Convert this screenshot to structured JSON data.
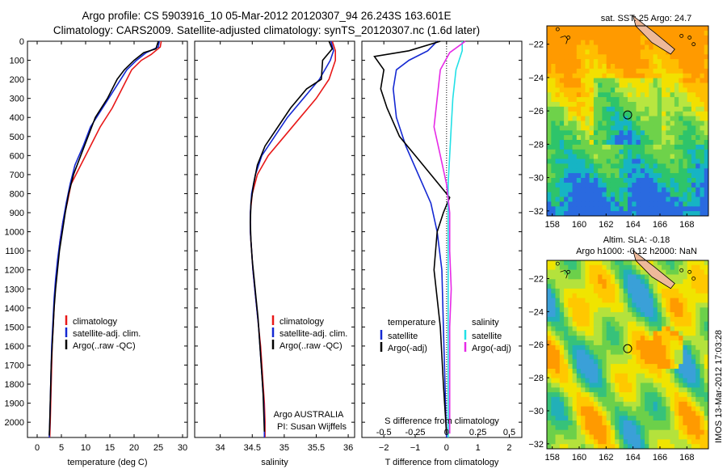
{
  "title_line1": "Argo profile: CS 5903916_10 05-Mar-2012 20120307_94 26.243S 163.601E",
  "title_line2": "Climatology: CARS2009. Satellite-adjusted climatology: synTS_20120307.nc (1.6d later)",
  "footer_text": "IMOS 13-Mar-2012 17:03:28",
  "colors": {
    "climatology": "#e81818",
    "satellite": "#1428d2",
    "argo": "#000000",
    "satellite_salinity": "#22e0e6",
    "argo_salinity": "#e62ae6"
  },
  "chart_data": [
    {
      "type": "line",
      "xlabel": "temperature (deg C)",
      "ylim": [
        2080,
        0
      ],
      "xlim": [
        -2,
        31
      ],
      "xticks": [
        0,
        5,
        10,
        15,
        20,
        25,
        30
      ],
      "yticks": [
        0,
        100,
        200,
        300,
        400,
        500,
        600,
        700,
        800,
        900,
        1000,
        1100,
        1200,
        1300,
        1400,
        1500,
        1600,
        1700,
        1800,
        1900,
        2000
      ],
      "legend_location": "lower-left",
      "series": [
        {
          "name": "climatology",
          "color": "red",
          "points": [
            [
              25.6,
              0
            ],
            [
              25.4,
              30
            ],
            [
              23.5,
              70
            ],
            [
              21.5,
              100
            ],
            [
              19.5,
              150
            ],
            [
              17.5,
              250
            ],
            [
              15.5,
              350
            ],
            [
              13,
              450
            ],
            [
              11,
              550
            ],
            [
              9,
              650
            ],
            [
              7,
              750
            ],
            [
              6.2,
              850
            ],
            [
              5.3,
              950
            ],
            [
              4.7,
              1050
            ],
            [
              4.3,
              1150
            ],
            [
              3.9,
              1250
            ],
            [
              3.6,
              1350
            ],
            [
              3.4,
              1450
            ],
            [
              3.1,
              1600
            ],
            [
              2.9,
              1800
            ],
            [
              2.7,
              2000
            ],
            [
              2.6,
              2080
            ]
          ]
        },
        {
          "name": "satellite-adj. clim.",
          "color": "blue",
          "points": [
            [
              25.2,
              0
            ],
            [
              25,
              30
            ],
            [
              22.5,
              60
            ],
            [
              20.5,
              100
            ],
            [
              18.5,
              150
            ],
            [
              16,
              250
            ],
            [
              13.5,
              350
            ],
            [
              11,
              450
            ],
            [
              9.5,
              550
            ],
            [
              7.8,
              650
            ],
            [
              6.8,
              750
            ],
            [
              6,
              850
            ],
            [
              5.3,
              950
            ],
            [
              4.7,
              1050
            ],
            [
              4.2,
              1150
            ],
            [
              3.8,
              1250
            ],
            [
              3.5,
              1350
            ],
            [
              3.3,
              1450
            ],
            [
              3,
              1600
            ],
            [
              2.8,
              1800
            ],
            [
              2.6,
              2000
            ],
            [
              2.5,
              2080
            ]
          ]
        },
        {
          "name": "Argo(..raw -QC)",
          "color": "black",
          "points": [
            [
              25,
              0
            ],
            [
              24.5,
              40
            ],
            [
              22,
              60
            ],
            [
              20,
              100
            ],
            [
              18,
              150
            ],
            [
              16.5,
              200
            ],
            [
              14.5,
              300
            ],
            [
              12,
              400
            ],
            [
              10.5,
              500
            ],
            [
              9,
              600
            ],
            [
              7.5,
              700
            ],
            [
              6.5,
              800
            ],
            [
              5.8,
              900
            ],
            [
              5.2,
              1000
            ],
            [
              4.6,
              1100
            ],
            [
              4.2,
              1200
            ],
            [
              3.8,
              1300
            ],
            [
              3.5,
              1400
            ],
            [
              3.3,
              1500
            ],
            [
              3.1,
              1600
            ],
            [
              2.9,
              1700
            ],
            [
              2.8,
              1800
            ],
            [
              2.7,
              1900
            ],
            [
              2.6,
              2000
            ],
            [
              2.5,
              2070
            ]
          ]
        }
      ]
    },
    {
      "type": "line",
      "xlabel": "salinity",
      "ylim": [
        2080,
        0
      ],
      "xlim": [
        33.6,
        36.1
      ],
      "xticks": [
        34,
        34.5,
        35,
        35.5,
        36
      ],
      "legend_location": "lower-right",
      "annotation": [
        "Argo AUSTRALIA",
        "PI: Susan Wijffels"
      ],
      "series": [
        {
          "name": "climatology",
          "color": "red",
          "points": [
            [
              35.75,
              0
            ],
            [
              35.8,
              50
            ],
            [
              35.8,
              100
            ],
            [
              35.7,
              200
            ],
            [
              35.5,
              300
            ],
            [
              35.25,
              400
            ],
            [
              35,
              500
            ],
            [
              34.75,
              600
            ],
            [
              34.58,
              700
            ],
            [
              34.5,
              800
            ],
            [
              34.47,
              900
            ],
            [
              34.47,
              1000
            ],
            [
              34.49,
              1100
            ],
            [
              34.51,
              1200
            ],
            [
              34.54,
              1300
            ],
            [
              34.57,
              1400
            ],
            [
              34.6,
              1500
            ],
            [
              34.63,
              1600
            ],
            [
              34.65,
              1700
            ],
            [
              34.67,
              1800
            ],
            [
              34.69,
              1900
            ],
            [
              34.7,
              2000
            ],
            [
              34.7,
              2080
            ]
          ]
        },
        {
          "name": "satellite-adj. clim.",
          "color": "blue",
          "points": [
            [
              35.73,
              0
            ],
            [
              35.77,
              50
            ],
            [
              35.72,
              100
            ],
            [
              35.55,
              200
            ],
            [
              35.3,
              300
            ],
            [
              35.05,
              400
            ],
            [
              34.85,
              500
            ],
            [
              34.65,
              600
            ],
            [
              34.55,
              700
            ],
            [
              34.49,
              800
            ],
            [
              34.47,
              900
            ],
            [
              34.47,
              1000
            ],
            [
              34.49,
              1100
            ],
            [
              34.51,
              1200
            ],
            [
              34.54,
              1300
            ],
            [
              34.57,
              1400
            ],
            [
              34.6,
              1500
            ],
            [
              34.62,
              1600
            ],
            [
              34.64,
              1700
            ],
            [
              34.66,
              1800
            ],
            [
              34.68,
              1900
            ],
            [
              34.69,
              2000
            ],
            [
              34.69,
              2080
            ]
          ]
        },
        {
          "name": "Argo(..raw -QC)",
          "color": "black",
          "points": [
            [
              35.7,
              0
            ],
            [
              35.75,
              40
            ],
            [
              35.6,
              100
            ],
            [
              35.58,
              200
            ],
            [
              35.35,
              250
            ],
            [
              35.1,
              350
            ],
            [
              34.9,
              450
            ],
            [
              34.7,
              550
            ],
            [
              34.58,
              650
            ],
            [
              34.52,
              750
            ],
            [
              34.48,
              850
            ],
            [
              34.47,
              950
            ],
            [
              34.48,
              1050
            ],
            [
              34.5,
              1150
            ],
            [
              34.53,
              1250
            ],
            [
              34.56,
              1350
            ],
            [
              34.59,
              1450
            ],
            [
              34.61,
              1550
            ],
            [
              34.63,
              1650
            ],
            [
              34.65,
              1750
            ],
            [
              34.67,
              1850
            ],
            [
              34.68,
              1950
            ],
            [
              34.69,
              2050
            ]
          ]
        }
      ]
    },
    {
      "type": "line",
      "xlabel": "T difference from climatology",
      "xlabel_top": "S difference from climatology",
      "ylim": [
        2080,
        0
      ],
      "xlim": [
        -2.7,
        2.4
      ],
      "xticks": [
        -2,
        -1,
        0,
        1,
        2
      ],
      "xticks_top_labels": [
        "-0.5",
        "-0.25",
        "0",
        "0.25",
        "0.5"
      ],
      "xticks_top_positions": [
        -2,
        -1,
        0,
        1,
        2
      ],
      "legend_location": "lower",
      "legend_headers": [
        "temperature",
        "salinity"
      ],
      "series": [
        {
          "name": "satellite",
          "group": "temperature",
          "color": "blue",
          "points": [
            [
              -0.3,
              0
            ],
            [
              -0.6,
              50
            ],
            [
              -1.2,
              100
            ],
            [
              -1.6,
              150
            ],
            [
              -1.7,
              250
            ],
            [
              -1.6,
              400
            ],
            [
              -1.3,
              550
            ],
            [
              -0.9,
              700
            ],
            [
              -0.5,
              850
            ],
            [
              -0.3,
              1000
            ],
            [
              -0.15,
              1200
            ],
            [
              -0.1,
              1500
            ],
            [
              -0.05,
              1800
            ],
            [
              0,
              2080
            ]
          ]
        },
        {
          "name": "Argo(-adj)",
          "group": "temperature",
          "color": "black",
          "points": [
            [
              -0.2,
              0
            ],
            [
              -1.2,
              50
            ],
            [
              -2.3,
              80
            ],
            [
              -2,
              150
            ],
            [
              -2.1,
              250
            ],
            [
              -1.9,
              350
            ],
            [
              -1.5,
              500
            ],
            [
              -1,
              600
            ],
            [
              -0.5,
              700
            ],
            [
              0.1,
              820
            ],
            [
              -0.1,
              900
            ],
            [
              -0.3,
              1000
            ],
            [
              -0.4,
              1200
            ],
            [
              -0.2,
              1500
            ],
            [
              -0.1,
              1800
            ],
            [
              0,
              2060
            ]
          ]
        },
        {
          "name": "satellite",
          "group": "salinity",
          "color": "cyan",
          "points": [
            [
              0.5,
              0
            ],
            [
              0.5,
              50
            ],
            [
              0.3,
              150
            ],
            [
              0.2,
              300
            ],
            [
              0.15,
              450
            ],
            [
              0.1,
              600
            ],
            [
              0.05,
              750
            ],
            [
              0.05,
              850
            ],
            [
              0.05,
              1000
            ],
            [
              0.05,
              1200
            ],
            [
              0.05,
              1500
            ],
            [
              0.05,
              1800
            ],
            [
              0.05,
              2080
            ]
          ]
        },
        {
          "name": "Argo(-adj)",
          "group": "salinity",
          "color": "magenta",
          "points": [
            [
              0.6,
              0
            ],
            [
              0.1,
              60
            ],
            [
              -0.2,
              150
            ],
            [
              -0.3,
              300
            ],
            [
              -0.4,
              450
            ],
            [
              -0.2,
              600
            ],
            [
              0,
              750
            ],
            [
              0.1,
              900
            ],
            [
              0.1,
              1100
            ],
            [
              0.15,
              1300
            ],
            [
              0.1,
              1500
            ],
            [
              0.1,
              1800
            ],
            [
              0.1,
              2060
            ]
          ]
        }
      ]
    },
    {
      "type": "heatmap",
      "title": "sat. SST: 25 Argo: 24.7",
      "xlim": [
        157.6,
        169.6
      ],
      "ylim": [
        -32.3,
        -20.9
      ],
      "xticks": [
        158,
        160,
        162,
        164,
        166,
        168
      ],
      "yticks": [
        -22,
        -24,
        -26,
        -28,
        -30,
        -32
      ],
      "marker": [
        163.6,
        -26.24
      ]
    },
    {
      "type": "heatmap",
      "title_line1": "Altim. SLA: -0.18",
      "title_line2": "Argo h1000: -0.12 h2000: NaN",
      "xlim": [
        157.6,
        169.6
      ],
      "ylim": [
        -32.3,
        -20.9
      ],
      "xticks": [
        158,
        160,
        162,
        164,
        166,
        168
      ],
      "yticks": [
        -22,
        -24,
        -26,
        -28,
        -30,
        -32
      ],
      "marker": [
        163.6,
        -26.24
      ]
    }
  ]
}
